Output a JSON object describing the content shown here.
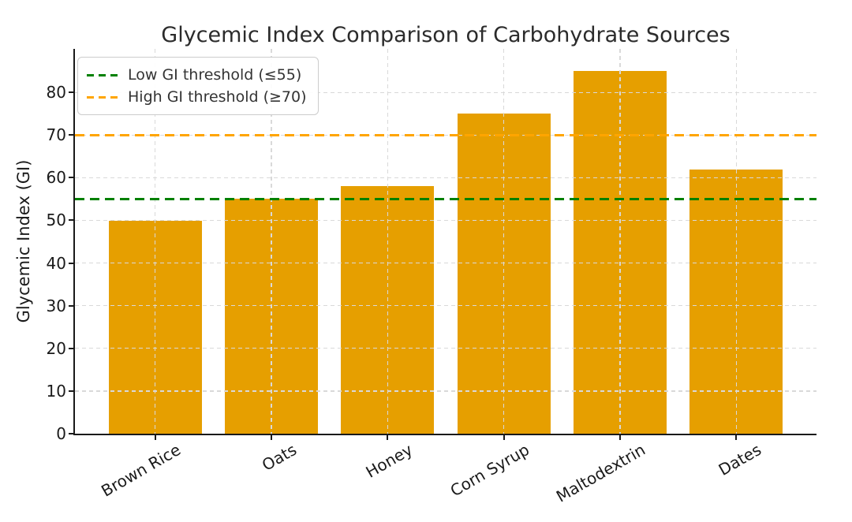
{
  "chart_data": {
    "type": "bar",
    "title": "Glycemic Index Comparison of Carbohydrate Sources",
    "categories": [
      "Brown Rice",
      "Oats",
      "Honey",
      "Corn Syrup",
      "Maltodextrin",
      "Dates"
    ],
    "values": [
      50,
      55,
      58,
      75,
      85,
      62
    ],
    "xlabel": "",
    "ylabel": "Glycemic Index (GI)",
    "ylim": [
      0,
      90.2
    ],
    "yticks": [
      0,
      10,
      20,
      30,
      40,
      50,
      60,
      70,
      80
    ],
    "bar_color": "#E69F00",
    "grid": true,
    "grid_style": "dashed",
    "grid_above_bars": true,
    "legend_position": "upper left",
    "x_tick_rotation_deg": 30,
    "thresholds": [
      {
        "label": "Low GI threshold (≤55)",
        "value": 55,
        "color": "#008000",
        "style": "dashed"
      },
      {
        "label": "High GI threshold (≥70)",
        "value": 70,
        "color": "#FFA500",
        "style": "dashed"
      }
    ]
  },
  "colors": {
    "bar": "#E69F00",
    "low_threshold": "#008000",
    "high_threshold": "#FFA500",
    "grid": "#d9d9d9",
    "text": "#1a1a1a",
    "spine": "#1a1a1a",
    "legend_border": "#cccccc"
  }
}
